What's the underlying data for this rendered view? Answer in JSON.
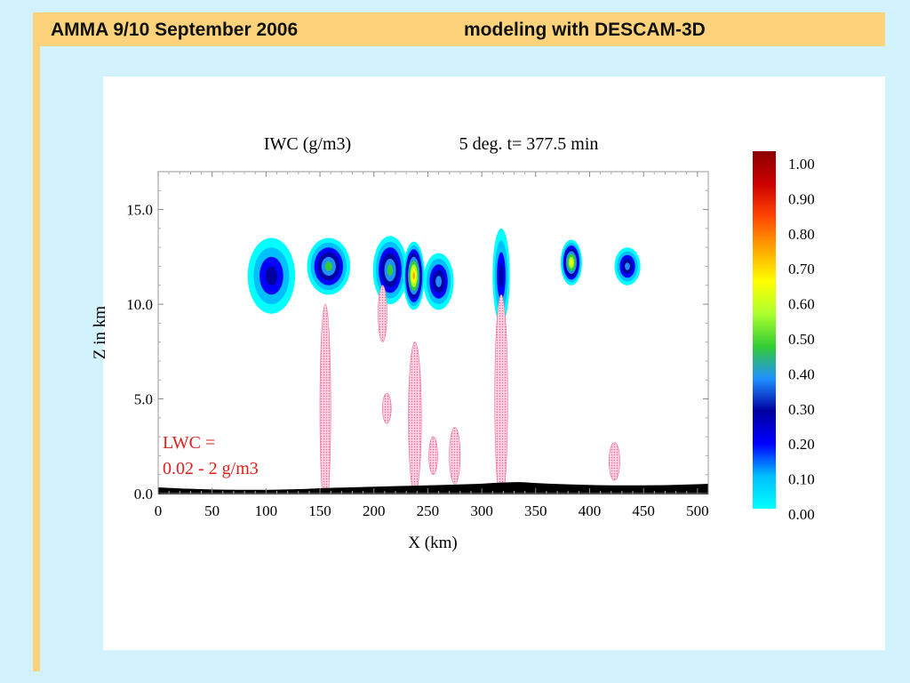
{
  "slide": {
    "title_left": "AMMA 9/10 September 2006",
    "title_right": "modeling with DESCAM-3D",
    "colors": {
      "background": "#d2f2fd",
      "accent_bar": "#fcd27a",
      "panel": "#ffffff"
    }
  },
  "chart_data": {
    "type": "heatmap",
    "title": "IWC (g/m3)",
    "subtitle": "5 deg. t= 377.5 min",
    "xlabel": "X (km)",
    "ylabel": "Z in km",
    "xlim": [
      0,
      510
    ],
    "ylim": [
      0,
      17
    ],
    "x_ticks": [
      "0",
      "50",
      "100",
      "150",
      "200",
      "250",
      "300",
      "350",
      "400",
      "450",
      "500"
    ],
    "y_ticks": [
      "0.0",
      "5.0",
      "10.0",
      "15.0"
    ],
    "annotation": {
      "line1": "LWC =",
      "line2": "0.02 - 2 g/m3",
      "color": "#e0201c"
    },
    "colorbar": {
      "ticks": [
        "1.00",
        "0.90",
        "0.80",
        "0.70",
        "0.60",
        "0.50",
        "0.40",
        "0.30",
        "0.20",
        "0.10",
        "0.00"
      ],
      "colors": [
        "#00ffff",
        "#00bfff",
        "#0000ff",
        "#0000a0",
        "#1e90ff",
        "#32cd32",
        "#adff2f",
        "#ffff00",
        "#ffa500",
        "#ff4500",
        "#cc0000",
        "#8b0000"
      ]
    },
    "iwc_cells": [
      {
        "x": 105,
        "z": 11.5,
        "rx": 22,
        "rz": 2.0,
        "peak": 0.3
      },
      {
        "x": 158,
        "z": 12.0,
        "rx": 20,
        "rz": 1.5,
        "peak": 0.45
      },
      {
        "x": 215,
        "z": 11.8,
        "rx": 16,
        "rz": 1.8,
        "peak": 0.45
      },
      {
        "x": 237,
        "z": 11.5,
        "rx": 10,
        "rz": 1.8,
        "peak": 0.75
      },
      {
        "x": 260,
        "z": 11.2,
        "rx": 14,
        "rz": 1.5,
        "peak": 0.35
      },
      {
        "x": 318,
        "z": 11.5,
        "rx": 8,
        "rz": 2.5,
        "peak": 0.3
      },
      {
        "x": 383,
        "z": 12.2,
        "rx": 10,
        "rz": 1.2,
        "peak": 0.65
      },
      {
        "x": 435,
        "z": 12.0,
        "rx": 12,
        "rz": 1.0,
        "peak": 0.35
      }
    ],
    "lwc_regions": [
      {
        "x": 155,
        "z": 4.5,
        "rx": 5,
        "rz": 5.5
      },
      {
        "x": 208,
        "z": 9.5,
        "rx": 4,
        "rz": 1.5
      },
      {
        "x": 212,
        "z": 4.5,
        "rx": 4,
        "rz": 0.8
      },
      {
        "x": 238,
        "z": 4.0,
        "rx": 6,
        "rz": 4.0
      },
      {
        "x": 255,
        "z": 2.0,
        "rx": 4,
        "rz": 1.0
      },
      {
        "x": 275,
        "z": 2.0,
        "rx": 5,
        "rz": 1.5
      },
      {
        "x": 318,
        "z": 5.0,
        "rx": 6,
        "rz": 5.5
      },
      {
        "x": 423,
        "z": 1.7,
        "rx": 5,
        "rz": 1.0
      }
    ]
  }
}
